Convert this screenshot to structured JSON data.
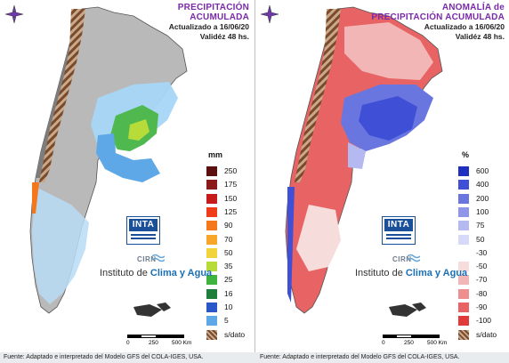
{
  "left": {
    "title_line1": "PRECIPITACIÓN",
    "title_line2": "ACUMULADA",
    "updated": "Actualizado a 16/06/20",
    "validity": "Validéz 48 hs.",
    "legend_unit": "mm",
    "legend": [
      {
        "label": "250",
        "color": "#5c0f0f"
      },
      {
        "label": "175",
        "color": "#8b1a1a"
      },
      {
        "label": "150",
        "color": "#c51b1b"
      },
      {
        "label": "125",
        "color": "#ee3d18"
      },
      {
        "label": "90",
        "color": "#f4771c"
      },
      {
        "label": "70",
        "color": "#f7a62a"
      },
      {
        "label": "50",
        "color": "#f1d33a"
      },
      {
        "label": "35",
        "color": "#b7dc3a"
      },
      {
        "label": "25",
        "color": "#3fb33f"
      },
      {
        "label": "16",
        "color": "#1f7f3a"
      },
      {
        "label": "10",
        "color": "#2a58c8"
      },
      {
        "label": "5",
        "color": "#5fa8e8"
      },
      {
        "label": "s/dato",
        "color": "#8a5a3a"
      }
    ]
  },
  "right": {
    "title_line1": "ANOMALÍA de",
    "title_line2": "PRECIPITACIÓN ACUMULADA",
    "updated": "Actualizado a 16/06/20",
    "validity": "Validéz 48 hs.",
    "legend_unit": "%",
    "legend": [
      {
        "label": "600",
        "color": "#1f2fbf"
      },
      {
        "label": "400",
        "color": "#3f4fd6"
      },
      {
        "label": "200",
        "color": "#6a76e0"
      },
      {
        "label": "100",
        "color": "#8e96ea"
      },
      {
        "label": "75",
        "color": "#b4b9f2"
      },
      {
        "label": "50",
        "color": "#d7d9f8"
      },
      {
        "label": "-30",
        "color": "#ffffff"
      },
      {
        "label": "-50",
        "color": "#f7dcdc"
      },
      {
        "label": "-70",
        "color": "#f2b6b6"
      },
      {
        "label": "-80",
        "color": "#ee8e8e"
      },
      {
        "label": "-90",
        "color": "#e86363"
      },
      {
        "label": "-100",
        "color": "#e03a3a"
      },
      {
        "label": "s/dato",
        "color": "#8a5a3a"
      }
    ]
  },
  "logo": {
    "inta": "INTA",
    "cirn": "CIRN",
    "institute_prefix": "Instituto de",
    "institute_highlight": "Clima y Agua"
  },
  "scale": {
    "l0": "0",
    "l1": "250",
    "l2": "500 Km"
  },
  "footer": "Fuente: Adaptado e interpretado del Modelo GFS del COLA-IGES, USA."
}
